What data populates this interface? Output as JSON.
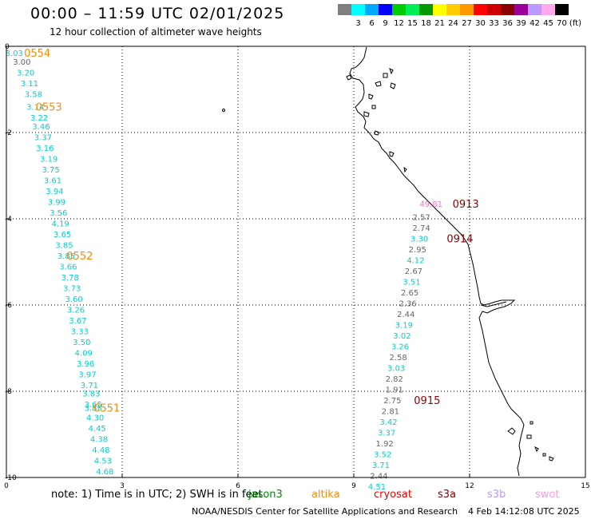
{
  "header": {
    "title": "00:00 – 11:59 UTC 02/01/2025",
    "subtitle": "12 hour collection of altimeter wave heights"
  },
  "colorbar": {
    "colors": [
      "#7f7f7f",
      "#00ffff",
      "#00aaff",
      "#0000ff",
      "#00cc00",
      "#00ee55",
      "#009900",
      "#ffff00",
      "#ffcc00",
      "#ff9900",
      "#ff0000",
      "#cc0000",
      "#880000",
      "#990099",
      "#bb99ff",
      "#ffaaee",
      "#000000"
    ],
    "labels": [
      "3",
      "6",
      "9",
      "12",
      "15",
      "18",
      "21",
      "24",
      "27",
      "30",
      "33",
      "36",
      "39",
      "42",
      "45",
      "70"
    ],
    "unit": "(ft)"
  },
  "footer": {
    "note": "note:  1) Time is in UTC;  2) SWH is in feet",
    "satellites": [
      {
        "name": "jason3",
        "color": "#008800"
      },
      {
        "name": "altika",
        "color": "#ff8800"
      },
      {
        "name": "cryosat",
        "color": "#ee0000"
      },
      {
        "name": "s3a",
        "color": "#880000"
      },
      {
        "name": "s3b",
        "color": "#bb99ff"
      },
      {
        "name": "swot",
        "color": "#ff99dd"
      }
    ],
    "credit": "NOAA/NESDIS Center for Satellite Applications and Research",
    "timestamp": "4 Feb 14:12:08 UTC 2025"
  },
  "chart_data": {
    "type": "scatter",
    "title": "00:00 – 11:59 UTC 02/01/2025",
    "subtitle": "12 hour collection of altimeter wave heights",
    "xlabel": "",
    "ylabel": "",
    "xlim": [
      0,
      15
    ],
    "ylim": [
      -10,
      0
    ],
    "xticks": [
      0,
      3,
      6,
      9,
      12,
      15
    ],
    "yticks": [
      0,
      -2,
      -4,
      -6,
      -8,
      -10
    ],
    "xticklabels": [
      "0",
      "3",
      "6",
      "9",
      "12",
      "15"
    ],
    "yticklabels": [
      "0",
      "-2",
      "-4",
      "-6",
      "-8",
      "-10"
    ],
    "grid": true,
    "colors": {
      "altika": "#ff8800",
      "s3a": "#880000",
      "cyan": "#00d0d0",
      "gray": "#666666",
      "pink": "#ff77cc"
    },
    "tracks": [
      {
        "satellite": "altika",
        "points": [
          {
            "x": 0.2,
            "y": -0.15,
            "label": "3.03",
            "color": "cyan"
          },
          {
            "x": 0.4,
            "y": -0.35,
            "label": "3.00",
            "color": "gray"
          },
          {
            "x": 0.5,
            "y": -0.6,
            "label": "3.20",
            "color": "cyan"
          },
          {
            "x": 0.6,
            "y": -0.85,
            "label": "3.11",
            "color": "cyan"
          },
          {
            "x": 0.7,
            "y": -1.1,
            "label": "3.58",
            "color": "cyan"
          },
          {
            "x": 0.75,
            "y": -1.4,
            "label": "3.14",
            "color": "cyan"
          },
          {
            "x": 0.85,
            "y": -1.65,
            "label": "3.22",
            "color": "cyan"
          },
          {
            "x": 0.9,
            "y": -1.85,
            "label": "3.46",
            "color": "cyan"
          },
          {
            "x": 0.95,
            "y": -2.1,
            "label": "3.37",
            "color": "cyan"
          },
          {
            "x": 1.0,
            "y": -2.35,
            "label": "3.16",
            "color": "cyan"
          },
          {
            "x": 1.1,
            "y": -2.6,
            "label": "3.19",
            "color": "cyan"
          },
          {
            "x": 1.15,
            "y": -2.85,
            "label": "3.75",
            "color": "cyan"
          },
          {
            "x": 1.2,
            "y": -3.1,
            "label": "3.61",
            "color": "cyan"
          },
          {
            "x": 1.25,
            "y": -3.35,
            "label": "3.94",
            "color": "cyan"
          },
          {
            "x": 1.3,
            "y": -3.6,
            "label": "3.99",
            "color": "cyan"
          },
          {
            "x": 1.35,
            "y": -3.85,
            "label": "3.56",
            "color": "cyan"
          },
          {
            "x": 1.4,
            "y": -4.1,
            "label": "4.19",
            "color": "cyan"
          },
          {
            "x": 1.45,
            "y": -4.35,
            "label": "3.65",
            "color": "cyan"
          },
          {
            "x": 1.5,
            "y": -4.6,
            "label": "3.85",
            "color": "cyan"
          },
          {
            "x": 1.55,
            "y": -4.85,
            "label": "3.85",
            "color": "cyan"
          },
          {
            "x": 1.6,
            "y": -5.1,
            "label": "3.66",
            "color": "cyan"
          },
          {
            "x": 1.65,
            "y": -5.35,
            "label": "3.78",
            "color": "cyan"
          },
          {
            "x": 1.7,
            "y": -5.6,
            "label": "3.73",
            "color": "cyan"
          },
          {
            "x": 1.75,
            "y": -5.85,
            "label": "3.60",
            "color": "cyan"
          },
          {
            "x": 1.8,
            "y": -6.1,
            "label": "3.26",
            "color": "cyan"
          },
          {
            "x": 1.85,
            "y": -6.35,
            "label": "3.67",
            "color": "cyan"
          },
          {
            "x": 1.9,
            "y": -6.6,
            "label": "3.33",
            "color": "cyan"
          },
          {
            "x": 1.95,
            "y": -6.85,
            "label": "3.50",
            "color": "cyan"
          },
          {
            "x": 2.0,
            "y": -7.1,
            "label": "4.09",
            "color": "cyan"
          },
          {
            "x": 2.05,
            "y": -7.35,
            "label": "3.96",
            "color": "cyan"
          },
          {
            "x": 2.1,
            "y": -7.6,
            "label": "3.97",
            "color": "cyan"
          },
          {
            "x": 2.15,
            "y": -7.85,
            "label": "3.71",
            "color": "cyan"
          },
          {
            "x": 2.2,
            "y": -8.05,
            "label": "3.83",
            "color": "cyan"
          },
          {
            "x": 2.25,
            "y": -8.3,
            "label": "3.65",
            "color": "cyan"
          },
          {
            "x": 2.25,
            "y": -8.38,
            "label": "3.85",
            "color": "cyan"
          },
          {
            "x": 2.3,
            "y": -8.6,
            "label": "4.30",
            "color": "cyan"
          },
          {
            "x": 2.35,
            "y": -8.85,
            "label": "4.45",
            "color": "cyan"
          },
          {
            "x": 2.4,
            "y": -9.1,
            "label": "4.38",
            "color": "cyan"
          },
          {
            "x": 2.45,
            "y": -9.35,
            "label": "4.48",
            "color": "cyan"
          },
          {
            "x": 2.5,
            "y": -9.6,
            "label": "4.53",
            "color": "cyan"
          },
          {
            "x": 2.55,
            "y": -9.85,
            "label": "4.68",
            "color": "cyan"
          }
        ],
        "passes": [
          {
            "label": "0554",
            "x": 0.8,
            "y": -0.15
          },
          {
            "label": "0553",
            "x": 1.1,
            "y": -1.4
          },
          {
            "label": "0552",
            "x": 1.9,
            "y": -4.85
          },
          {
            "label": "0551",
            "x": 2.6,
            "y": -8.38
          }
        ]
      },
      {
        "satellite": "s3a",
        "points": [
          {
            "x": 11.0,
            "y": -3.65,
            "label": "49.81",
            "color": "pink"
          },
          {
            "x": 10.75,
            "y": -3.95,
            "label": "2.57",
            "color": "gray"
          },
          {
            "x": 10.75,
            "y": -4.2,
            "label": "2.74",
            "color": "gray"
          },
          {
            "x": 10.7,
            "y": -4.45,
            "label": "3.30",
            "color": "cyan"
          },
          {
            "x": 10.65,
            "y": -4.7,
            "label": "2.95",
            "color": "gray"
          },
          {
            "x": 10.6,
            "y": -4.95,
            "label": "4.12",
            "color": "cyan"
          },
          {
            "x": 10.55,
            "y": -5.2,
            "label": "2.67",
            "color": "gray"
          },
          {
            "x": 10.5,
            "y": -5.45,
            "label": "3.51",
            "color": "cyan"
          },
          {
            "x": 10.45,
            "y": -5.7,
            "label": "2.65",
            "color": "gray"
          },
          {
            "x": 10.4,
            "y": -5.95,
            "label": "2.36",
            "color": "gray"
          },
          {
            "x": 10.35,
            "y": -6.2,
            "label": "2.44",
            "color": "gray"
          },
          {
            "x": 10.3,
            "y": -6.45,
            "label": "3.19",
            "color": "cyan"
          },
          {
            "x": 10.25,
            "y": -6.7,
            "label": "3.02",
            "color": "cyan"
          },
          {
            "x": 10.2,
            "y": -6.95,
            "label": "3.26",
            "color": "cyan"
          },
          {
            "x": 10.15,
            "y": -7.2,
            "label": "2.58",
            "color": "gray"
          },
          {
            "x": 10.1,
            "y": -7.45,
            "label": "3.03",
            "color": "cyan"
          },
          {
            "x": 10.05,
            "y": -7.7,
            "label": "2.82",
            "color": "gray"
          },
          {
            "x": 10.05,
            "y": -7.95,
            "label": "1.91",
            "color": "gray"
          },
          {
            "x": 10.0,
            "y": -8.2,
            "label": "2.75",
            "color": "gray"
          },
          {
            "x": 9.95,
            "y": -8.45,
            "label": "2.81",
            "color": "gray"
          },
          {
            "x": 9.9,
            "y": -8.7,
            "label": "3.42",
            "color": "cyan"
          },
          {
            "x": 9.85,
            "y": -8.95,
            "label": "3.37",
            "color": "cyan"
          },
          {
            "x": 9.8,
            "y": -9.2,
            "label": "1.92",
            "color": "gray"
          },
          {
            "x": 9.75,
            "y": -9.45,
            "label": "3.52",
            "color": "cyan"
          },
          {
            "x": 9.7,
            "y": -9.7,
            "label": "3.71",
            "color": "cyan"
          },
          {
            "x": 9.65,
            "y": -9.95,
            "label": "2.44",
            "color": "gray"
          },
          {
            "x": 9.6,
            "y": -10.2,
            "label": "4.51",
            "color": "cyan"
          }
        ],
        "passes": [
          {
            "label": "0913",
            "x": 11.9,
            "y": -3.65
          },
          {
            "label": "0914",
            "x": 11.75,
            "y": -4.45
          },
          {
            "label": "0915",
            "x": 10.9,
            "y": -8.2
          }
        ]
      }
    ]
  }
}
